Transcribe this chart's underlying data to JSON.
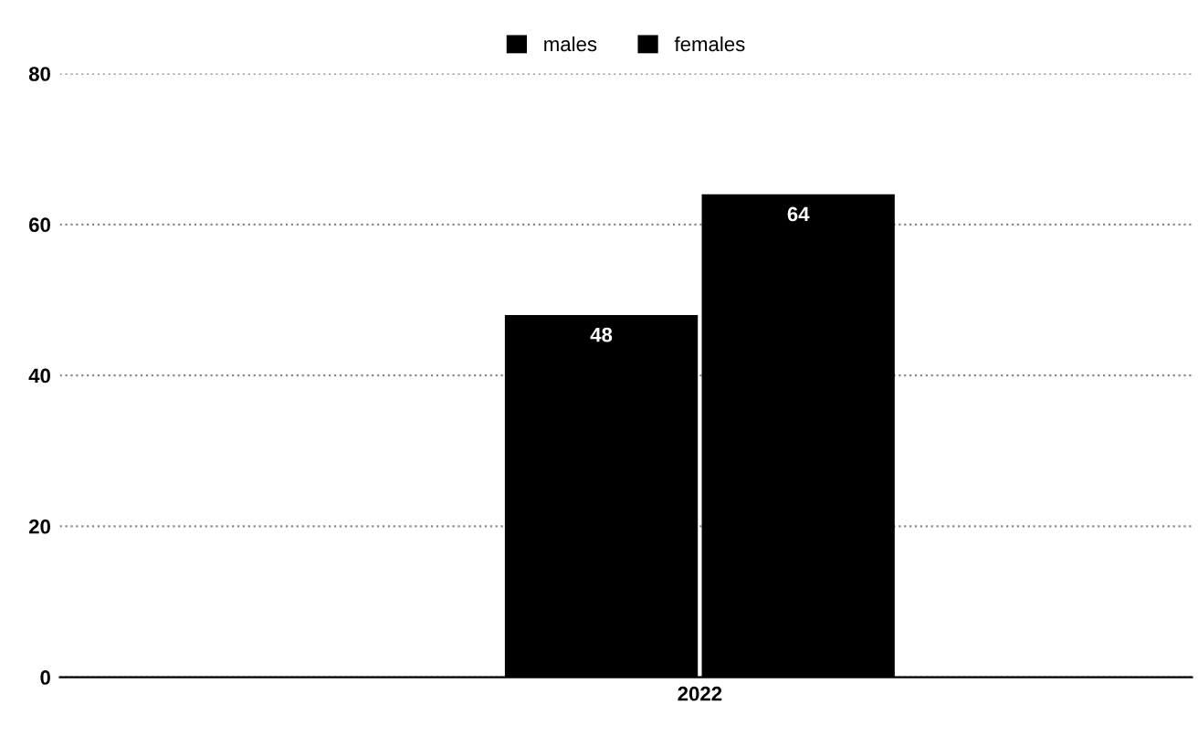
{
  "chart_data": {
    "type": "bar",
    "categories": [
      "2022"
    ],
    "series": [
      {
        "name": "males",
        "color": "#000000",
        "values": [
          48
        ]
      },
      {
        "name": "females",
        "color": "#000000",
        "values": [
          64
        ]
      }
    ],
    "ylim": [
      0,
      80
    ],
    "yticks": [
      0,
      20,
      40,
      60,
      80
    ],
    "grid": "y",
    "legend": "top",
    "data_labels": true
  }
}
